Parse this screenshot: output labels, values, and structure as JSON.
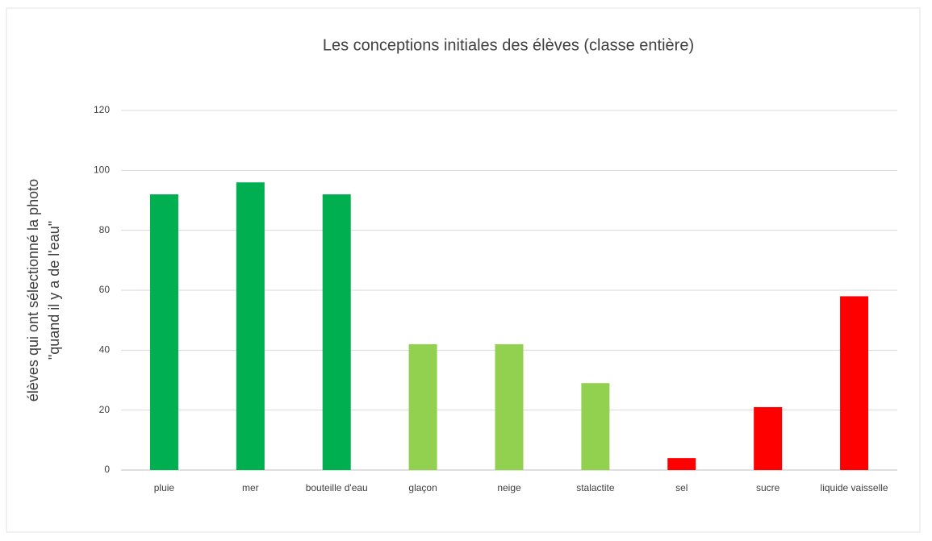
{
  "chart_data": {
    "type": "bar",
    "title": "Les conceptions initiales des élèves (classe entière)",
    "ylabel": [
      "élèves qui ont sélectionné la photo",
      "\"quand il y a de l'eau\""
    ],
    "categories": [
      "pluie",
      "mer",
      "bouteille d'eau",
      "glaçon",
      "neige",
      "stalactite",
      "sel",
      "sucre",
      "liquide vaisselle"
    ],
    "values": [
      92,
      96,
      92,
      42,
      42,
      29,
      4,
      21,
      58
    ],
    "colors": [
      "#00b050",
      "#00b050",
      "#00b050",
      "#92d050",
      "#92d050",
      "#92d050",
      "#ff0000",
      "#ff0000",
      "#ff0000"
    ],
    "ylim": [
      0,
      120
    ],
    "yticks": [
      0,
      20,
      40,
      60,
      80,
      100,
      120
    ],
    "grid": true
  }
}
